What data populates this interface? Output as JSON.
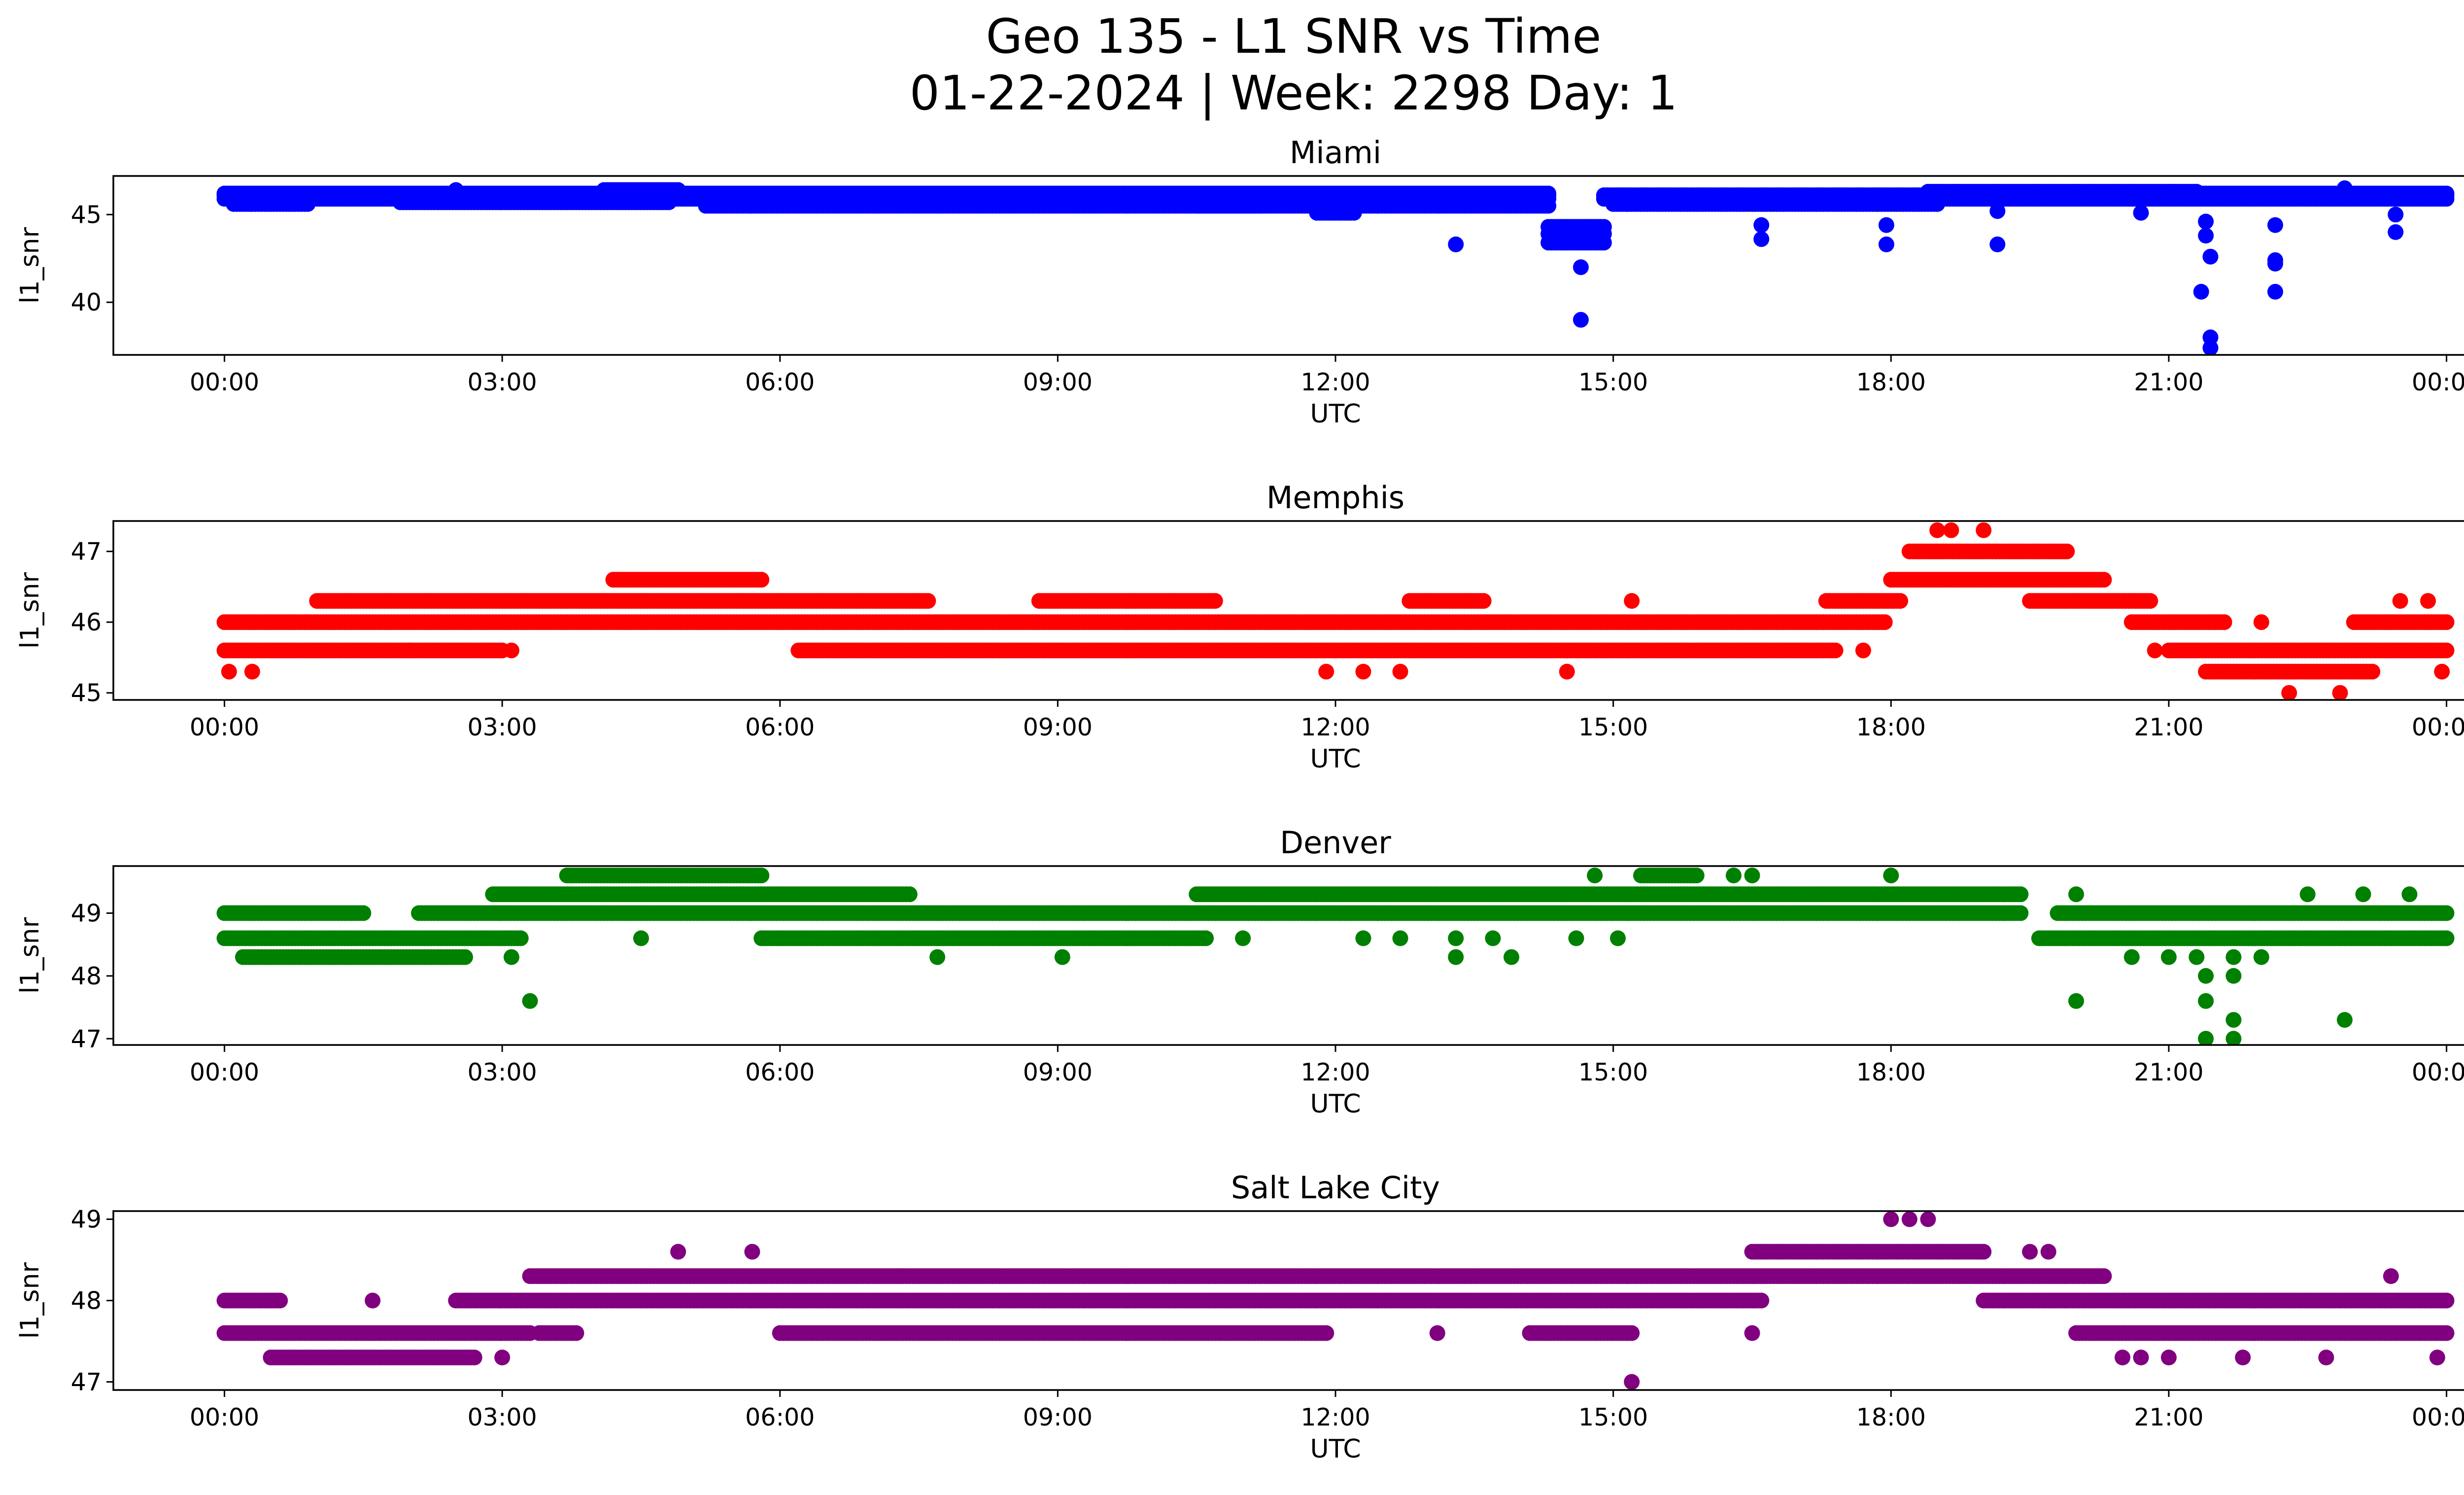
{
  "figure": {
    "title_line1": "Geo 135 - L1 SNR vs Time",
    "title_line2": "01-22-2024 | Week: 2298 Day: 1"
  },
  "chart_data": [
    {
      "type": "scatter",
      "title": "Miami",
      "xlabel": "UTC",
      "ylabel": "l1_snr",
      "color": "#0000ff",
      "xlim_hours": [
        -1.2,
        25.2
      ],
      "ylim": [
        37.0,
        47.2
      ],
      "xticks": [
        {
          "h": 0,
          "label": "00:00"
        },
        {
          "h": 3,
          "label": "03:00"
        },
        {
          "h": 6,
          "label": "06:00"
        },
        {
          "h": 9,
          "label": "09:00"
        },
        {
          "h": 12,
          "label": "12:00"
        },
        {
          "h": 15,
          "label": "15:00"
        },
        {
          "h": 18,
          "label": "18:00"
        },
        {
          "h": 21,
          "label": "21:00"
        },
        {
          "h": 24,
          "label": "00:00"
        }
      ],
      "yticks": [
        {
          "v": 40,
          "label": "40"
        },
        {
          "v": 45,
          "label": "45"
        }
      ],
      "bands": [
        {
          "start": 0.0,
          "end": 14.3,
          "values": [
            46.1,
            46.2,
            45.9
          ]
        },
        {
          "start": 0.1,
          "end": 0.9,
          "values": [
            45.6
          ]
        },
        {
          "start": 1.9,
          "end": 4.8,
          "values": [
            45.7
          ]
        },
        {
          "start": 4.1,
          "end": 4.9,
          "values": [
            46.4
          ]
        },
        {
          "start": 5.2,
          "end": 11.2,
          "values": [
            45.5
          ]
        },
        {
          "start": 10.5,
          "end": 14.3,
          "values": [
            45.5
          ]
        },
        {
          "start": 11.8,
          "end": 12.2,
          "values": [
            45.1
          ]
        },
        {
          "start": 14.3,
          "end": 14.9,
          "values": [
            44.3,
            43.9,
            43.4
          ]
        },
        {
          "start": 14.9,
          "end": 24.0,
          "values": [
            46.1,
            45.9
          ]
        },
        {
          "start": 15.0,
          "end": 18.5,
          "values": [
            45.6
          ]
        },
        {
          "start": 18.4,
          "end": 21.3,
          "values": [
            46.3
          ]
        },
        {
          "start": 21.3,
          "end": 24.0,
          "values": [
            46.2
          ]
        }
      ],
      "points": [
        {
          "h": 13.3,
          "v": 43.3
        },
        {
          "h": 14.65,
          "v": 42.0
        },
        {
          "h": 14.65,
          "v": 39.0
        },
        {
          "h": 16.6,
          "v": 43.6
        },
        {
          "h": 16.6,
          "v": 44.4
        },
        {
          "h": 17.95,
          "v": 43.3
        },
        {
          "h": 17.95,
          "v": 44.4
        },
        {
          "h": 19.15,
          "v": 43.3
        },
        {
          "h": 19.15,
          "v": 45.2
        },
        {
          "h": 21.35,
          "v": 40.6
        },
        {
          "h": 21.45,
          "v": 38.0
        },
        {
          "h": 21.45,
          "v": 37.4
        },
        {
          "h": 21.45,
          "v": 42.6
        },
        {
          "h": 21.4,
          "v": 43.8
        },
        {
          "h": 21.4,
          "v": 44.6
        },
        {
          "h": 22.15,
          "v": 42.4
        },
        {
          "h": 22.15,
          "v": 42.2
        },
        {
          "h": 22.15,
          "v": 40.6
        },
        {
          "h": 22.15,
          "v": 44.4
        },
        {
          "h": 23.45,
          "v": 44.0
        },
        {
          "h": 23.45,
          "v": 45.0
        },
        {
          "h": 20.7,
          "v": 45.1
        },
        {
          "h": 22.9,
          "v": 46.5
        },
        {
          "h": 2.5,
          "v": 46.4
        }
      ]
    },
    {
      "type": "scatter",
      "title": "Memphis",
      "xlabel": "UTC",
      "ylabel": "l1_snr",
      "color": "#ff0000",
      "xlim_hours": [
        -1.2,
        25.2
      ],
      "ylim": [
        44.9,
        47.43
      ],
      "xticks": [
        {
          "h": 0,
          "label": "00:00"
        },
        {
          "h": 3,
          "label": "03:00"
        },
        {
          "h": 6,
          "label": "06:00"
        },
        {
          "h": 9,
          "label": "09:00"
        },
        {
          "h": 12,
          "label": "12:00"
        },
        {
          "h": 15,
          "label": "15:00"
        },
        {
          "h": 18,
          "label": "18:00"
        },
        {
          "h": 21,
          "label": "21:00"
        },
        {
          "h": 24,
          "label": "00:00"
        }
      ],
      "yticks": [
        {
          "v": 45,
          "label": "45"
        },
        {
          "v": 46,
          "label": "46"
        },
        {
          "v": 47,
          "label": "47"
        }
      ],
      "bands": [
        {
          "start": 0.0,
          "end": 17.95,
          "values": [
            46.0
          ]
        },
        {
          "start": 0.0,
          "end": 2.0,
          "values": [
            45.6
          ]
        },
        {
          "start": 1.0,
          "end": 7.6,
          "values": [
            46.3
          ]
        },
        {
          "start": 2.0,
          "end": 3.0,
          "values": [
            45.6
          ]
        },
        {
          "start": 4.2,
          "end": 5.8,
          "values": [
            46.6
          ]
        },
        {
          "start": 6.2,
          "end": 17.4,
          "values": [
            45.6
          ]
        },
        {
          "start": 8.8,
          "end": 10.7,
          "values": [
            46.3
          ]
        },
        {
          "start": 12.8,
          "end": 13.6,
          "values": [
            46.3
          ]
        },
        {
          "start": 17.3,
          "end": 18.1,
          "values": [
            46.3
          ]
        },
        {
          "start": 18.0,
          "end": 20.3,
          "values": [
            46.6
          ]
        },
        {
          "start": 18.2,
          "end": 19.9,
          "values": [
            47.0
          ]
        },
        {
          "start": 19.5,
          "end": 20.8,
          "values": [
            46.3
          ]
        },
        {
          "start": 20.6,
          "end": 21.6,
          "values": [
            46.0
          ]
        },
        {
          "start": 21.0,
          "end": 24.0,
          "values": [
            45.6
          ]
        },
        {
          "start": 21.4,
          "end": 23.2,
          "values": [
            45.3
          ]
        },
        {
          "start": 23.0,
          "end": 24.0,
          "values": [
            46.0
          ]
        }
      ],
      "points": [
        {
          "h": 0.05,
          "v": 45.3
        },
        {
          "h": 0.3,
          "v": 45.3
        },
        {
          "h": 11.9,
          "v": 45.3
        },
        {
          "h": 12.3,
          "v": 45.3
        },
        {
          "h": 12.7,
          "v": 45.3
        },
        {
          "h": 14.5,
          "v": 45.3
        },
        {
          "h": 18.5,
          "v": 47.3
        },
        {
          "h": 18.65,
          "v": 47.3
        },
        {
          "h": 19.0,
          "v": 47.3
        },
        {
          "h": 22.3,
          "v": 45.0
        },
        {
          "h": 22.85,
          "v": 45.0
        },
        {
          "h": 23.95,
          "v": 45.3
        },
        {
          "h": 20.85,
          "v": 45.6
        },
        {
          "h": 22.0,
          "v": 46.0
        },
        {
          "h": 23.5,
          "v": 46.3
        },
        {
          "h": 23.8,
          "v": 46.3
        },
        {
          "h": 17.7,
          "v": 45.6
        },
        {
          "h": 15.2,
          "v": 46.3
        },
        {
          "h": 3.1,
          "v": 45.6
        }
      ]
    },
    {
      "type": "scatter",
      "title": "Denver",
      "xlabel": "UTC",
      "ylabel": "l1_snr",
      "color": "#008000",
      "xlim_hours": [
        -1.2,
        25.2
      ],
      "ylim": [
        46.9,
        49.75
      ],
      "xticks": [
        {
          "h": 0,
          "label": "00:00"
        },
        {
          "h": 3,
          "label": "03:00"
        },
        {
          "h": 6,
          "label": "06:00"
        },
        {
          "h": 9,
          "label": "09:00"
        },
        {
          "h": 12,
          "label": "12:00"
        },
        {
          "h": 15,
          "label": "15:00"
        },
        {
          "h": 18,
          "label": "18:00"
        },
        {
          "h": 21,
          "label": "21:00"
        },
        {
          "h": 24,
          "label": "00:00"
        }
      ],
      "yticks": [
        {
          "v": 47,
          "label": "47"
        },
        {
          "v": 48,
          "label": "48"
        },
        {
          "v": 49,
          "label": "49"
        }
      ],
      "bands": [
        {
          "start": 0.0,
          "end": 1.5,
          "values": [
            49.0
          ]
        },
        {
          "start": 0.0,
          "end": 3.2,
          "values": [
            48.6
          ]
        },
        {
          "start": 0.2,
          "end": 2.6,
          "values": [
            48.3
          ]
        },
        {
          "start": 2.1,
          "end": 19.4,
          "values": [
            49.0
          ]
        },
        {
          "start": 2.9,
          "end": 7.4,
          "values": [
            49.3
          ]
        },
        {
          "start": 3.7,
          "end": 5.8,
          "values": [
            49.6
          ]
        },
        {
          "start": 5.8,
          "end": 10.6,
          "values": [
            48.6
          ]
        },
        {
          "start": 10.5,
          "end": 19.4,
          "values": [
            49.3
          ]
        },
        {
          "start": 15.3,
          "end": 15.9,
          "values": [
            49.6
          ]
        },
        {
          "start": 19.6,
          "end": 24.0,
          "values": [
            48.6
          ]
        },
        {
          "start": 19.8,
          "end": 24.0,
          "values": [
            49.0
          ]
        }
      ],
      "points": [
        {
          "h": 3.1,
          "v": 48.3
        },
        {
          "h": 3.3,
          "v": 47.6
        },
        {
          "h": 4.5,
          "v": 48.6
        },
        {
          "h": 7.7,
          "v": 48.3
        },
        {
          "h": 9.05,
          "v": 48.3
        },
        {
          "h": 11.0,
          "v": 48.6
        },
        {
          "h": 12.3,
          "v": 48.6
        },
        {
          "h": 12.7,
          "v": 48.6
        },
        {
          "h": 13.3,
          "v": 48.3
        },
        {
          "h": 13.3,
          "v": 48.6
        },
        {
          "h": 13.9,
          "v": 48.3
        },
        {
          "h": 13.7,
          "v": 48.6
        },
        {
          "h": 14.6,
          "v": 48.6
        },
        {
          "h": 15.05,
          "v": 48.6
        },
        {
          "h": 14.8,
          "v": 49.6
        },
        {
          "h": 16.3,
          "v": 49.6
        },
        {
          "h": 16.5,
          "v": 49.6
        },
        {
          "h": 18.0,
          "v": 49.6
        },
        {
          "h": 20.0,
          "v": 47.6
        },
        {
          "h": 20.0,
          "v": 49.3
        },
        {
          "h": 20.6,
          "v": 48.3
        },
        {
          "h": 21.0,
          "v": 48.3
        },
        {
          "h": 21.4,
          "v": 48.0
        },
        {
          "h": 21.4,
          "v": 47.6
        },
        {
          "h": 21.4,
          "v": 47.0
        },
        {
          "h": 21.7,
          "v": 47.3
        },
        {
          "h": 21.7,
          "v": 47.0
        },
        {
          "h": 21.7,
          "v": 48.0
        },
        {
          "h": 21.7,
          "v": 48.3
        },
        {
          "h": 21.3,
          "v": 48.3
        },
        {
          "h": 22.0,
          "v": 48.3
        },
        {
          "h": 22.5,
          "v": 49.3
        },
        {
          "h": 22.9,
          "v": 47.3
        },
        {
          "h": 23.1,
          "v": 49.3
        },
        {
          "h": 23.6,
          "v": 49.3
        }
      ]
    },
    {
      "type": "scatter",
      "title": "Salt Lake City",
      "xlabel": "UTC",
      "ylabel": "l1_snr",
      "color": "#800080",
      "xlim_hours": [
        -1.2,
        25.2
      ],
      "ylim": [
        46.9,
        49.1
      ],
      "xticks": [
        {
          "h": 0,
          "label": "00:00"
        },
        {
          "h": 3,
          "label": "03:00"
        },
        {
          "h": 6,
          "label": "06:00"
        },
        {
          "h": 9,
          "label": "09:00"
        },
        {
          "h": 12,
          "label": "12:00"
        },
        {
          "h": 15,
          "label": "15:00"
        },
        {
          "h": 18,
          "label": "18:00"
        },
        {
          "h": 21,
          "label": "21:00"
        },
        {
          "h": 24,
          "label": "00:00"
        }
      ],
      "yticks": [
        {
          "v": 47,
          "label": "47"
        },
        {
          "v": 48,
          "label": "48"
        },
        {
          "v": 49,
          "label": "49"
        }
      ],
      "bands": [
        {
          "start": 0.0,
          "end": 0.6,
          "values": [
            48.0
          ]
        },
        {
          "start": 0.0,
          "end": 3.3,
          "values": [
            47.6
          ]
        },
        {
          "start": 0.5,
          "end": 2.7,
          "values": [
            47.3
          ]
        },
        {
          "start": 2.5,
          "end": 16.6,
          "values": [
            48.0
          ]
        },
        {
          "start": 3.3,
          "end": 20.3,
          "values": [
            48.3
          ]
        },
        {
          "start": 3.4,
          "end": 3.8,
          "values": [
            47.6
          ]
        },
        {
          "start": 6.0,
          "end": 11.9,
          "values": [
            47.6
          ]
        },
        {
          "start": 14.1,
          "end": 15.2,
          "values": [
            47.6
          ]
        },
        {
          "start": 16.5,
          "end": 19.0,
          "values": [
            48.6
          ]
        },
        {
          "start": 19.0,
          "end": 24.0,
          "values": [
            48.0
          ]
        },
        {
          "start": 20.0,
          "end": 24.0,
          "values": [
            47.6
          ]
        }
      ],
      "points": [
        {
          "h": 1.6,
          "v": 48.0
        },
        {
          "h": 3.0,
          "v": 47.3
        },
        {
          "h": 4.9,
          "v": 48.6
        },
        {
          "h": 5.7,
          "v": 48.6
        },
        {
          "h": 7.3,
          "v": 48.3
        },
        {
          "h": 13.1,
          "v": 47.6
        },
        {
          "h": 15.2,
          "v": 47.0
        },
        {
          "h": 16.5,
          "v": 47.6
        },
        {
          "h": 18.0,
          "v": 49.0
        },
        {
          "h": 18.2,
          "v": 49.0
        },
        {
          "h": 18.4,
          "v": 49.0
        },
        {
          "h": 19.5,
          "v": 48.6
        },
        {
          "h": 19.7,
          "v": 48.6
        },
        {
          "h": 20.5,
          "v": 47.3
        },
        {
          "h": 20.7,
          "v": 47.3
        },
        {
          "h": 21.0,
          "v": 47.3
        },
        {
          "h": 21.8,
          "v": 47.3
        },
        {
          "h": 22.7,
          "v": 47.3
        },
        {
          "h": 23.4,
          "v": 48.3
        },
        {
          "h": 23.9,
          "v": 47.3
        }
      ]
    }
  ]
}
